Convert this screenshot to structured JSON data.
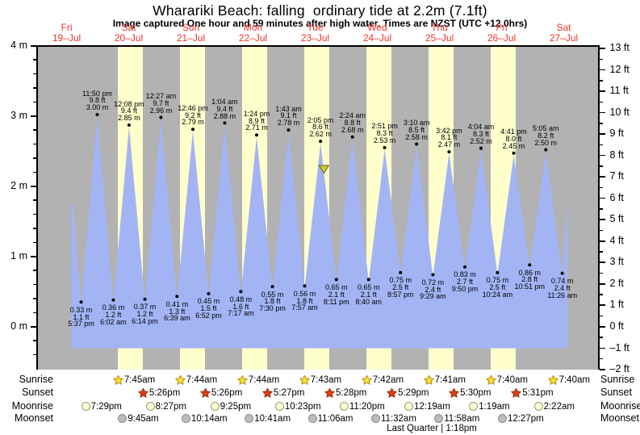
{
  "page": {
    "title": "Wharariki Beach: falling  ordinary tide at 2.2m (7.1ft)",
    "subtitle": "Image captured One hour and 59 minutes after high water. Times are NZST (UTC +12.0hrs)"
  },
  "chart_data": {
    "type": "area",
    "title": "Wharariki Beach: falling  ordinary tide at 2.2m (7.1ft)",
    "subtitle": "Image captured One hour and 59 minutes after high water. Times are NZST (UTC +12.0hrs)",
    "legend_position": "none",
    "grid": false,
    "x_days": [
      {
        "dow": "Fri",
        "date": "19–Jul"
      },
      {
        "dow": "Sat",
        "date": "20–Jul"
      },
      {
        "dow": "Sun",
        "date": "21–Jul"
      },
      {
        "dow": "Mon",
        "date": "22–Jul"
      },
      {
        "dow": "Tue",
        "date": "23–Jul"
      },
      {
        "dow": "Wed",
        "date": "24–Jul"
      },
      {
        "dow": "Thu",
        "date": "25–Jul"
      },
      {
        "dow": "Fri",
        "date": "26–Jul"
      },
      {
        "dow": "Sat",
        "date": "27–Jul"
      }
    ],
    "y_left": {
      "unit": "m",
      "range": [
        0,
        4
      ],
      "ticks": [
        {
          "v": 4,
          "label": "4 m"
        },
        {
          "v": 3,
          "label": "3 m"
        },
        {
          "v": 2,
          "label": "2 m"
        },
        {
          "v": 1,
          "label": "1 m"
        },
        {
          "v": 0,
          "label": "0 m"
        }
      ]
    },
    "y_right": {
      "unit": "ft",
      "range": [
        -2,
        13
      ],
      "ticks": [
        {
          "v": 13,
          "label": "13 ft"
        },
        {
          "v": 12,
          "label": "12 ft"
        },
        {
          "v": 11,
          "label": "11 ft"
        },
        {
          "v": 10,
          "label": "10 ft"
        },
        {
          "v": 9,
          "label": "9 ft"
        },
        {
          "v": 8,
          "label": "8 ft"
        },
        {
          "v": 7,
          "label": "7 ft"
        },
        {
          "v": 6,
          "label": "6 ft"
        },
        {
          "v": 5,
          "label": "5 ft"
        },
        {
          "v": 4,
          "label": "4 ft"
        },
        {
          "v": 3,
          "label": "3 ft"
        },
        {
          "v": 2,
          "label": "2 ft"
        },
        {
          "v": 1,
          "label": "1 ft"
        },
        {
          "v": 0,
          "label": "0 ft"
        },
        {
          "v": -1,
          "label": "–1 ft"
        },
        {
          "v": -2,
          "label": "–2 ft"
        }
      ]
    },
    "tides": [
      {
        "type": "L",
        "day": 0,
        "time": "5:37 pm",
        "m": "0.33 m",
        "ft": "1.1 ft"
      },
      {
        "type": "H",
        "day": 0,
        "time": "11:50 pm",
        "m": "3.00 m",
        "ft": "9.8 ft"
      },
      {
        "type": "L",
        "day": 1,
        "time": "6:02 am",
        "m": "0.36 m",
        "ft": "1.2 ft"
      },
      {
        "type": "H",
        "day": 1,
        "time": "12:08 pm",
        "m": "2.85 m",
        "ft": "9.4 ft"
      },
      {
        "type": "L",
        "day": 1,
        "time": "6:14 pm",
        "m": "0.37 m",
        "ft": "1.2 ft"
      },
      {
        "type": "H",
        "day": 2,
        "time": "12:27 am",
        "m": "2.96 m",
        "ft": "9.7 ft"
      },
      {
        "type": "L",
        "day": 2,
        "time": "6:39 am",
        "m": "0.41 m",
        "ft": "1.3 ft"
      },
      {
        "type": "H",
        "day": 2,
        "time": "12:46 pm",
        "m": "2.79 m",
        "ft": "9.2 ft"
      },
      {
        "type": "L",
        "day": 2,
        "time": "6:52 pm",
        "m": "0.45 m",
        "ft": "1.5 ft"
      },
      {
        "type": "H",
        "day": 3,
        "time": "1:04 am",
        "m": "2.88 m",
        "ft": "9.4 ft"
      },
      {
        "type": "L",
        "day": 3,
        "time": "7:17 am",
        "m": "0.48 m",
        "ft": "1.6 ft"
      },
      {
        "type": "H",
        "day": 3,
        "time": "1:24 pm",
        "m": "2.71 m",
        "ft": "8.9 ft"
      },
      {
        "type": "L",
        "day": 3,
        "time": "7:30 pm",
        "m": "0.55 m",
        "ft": "1.8 ft"
      },
      {
        "type": "H",
        "day": 4,
        "time": "1:43 am",
        "m": "2.78 m",
        "ft": "9.1 ft"
      },
      {
        "type": "L",
        "day": 4,
        "time": "7:57 am",
        "m": "0.56 m",
        "ft": "1.8 ft"
      },
      {
        "type": "H",
        "day": 4,
        "time": "2:05 pm",
        "m": "2.62 m",
        "ft": "8.6 ft"
      },
      {
        "type": "L",
        "day": 4,
        "time": "8:11 pm",
        "m": "0.65 m",
        "ft": "2.1 ft"
      },
      {
        "type": "H",
        "day": 5,
        "time": "2:24 am",
        "m": "2.68 m",
        "ft": "8.8 ft"
      },
      {
        "type": "L",
        "day": 5,
        "time": "8:40 am",
        "m": "0.65 m",
        "ft": "2.1 ft"
      },
      {
        "type": "H",
        "day": 5,
        "time": "2:51 pm",
        "m": "2.53 m",
        "ft": "8.3 ft"
      },
      {
        "type": "L",
        "day": 5,
        "time": "8:57 pm",
        "m": "0.75 m",
        "ft": "2.5 ft"
      },
      {
        "type": "H",
        "day": 6,
        "time": "3:10 am",
        "m": "2.58 m",
        "ft": "8.5 ft"
      },
      {
        "type": "L",
        "day": 6,
        "time": "9:29 am",
        "m": "0.72 m",
        "ft": "2.4 ft"
      },
      {
        "type": "H",
        "day": 6,
        "time": "3:42 pm",
        "m": "2.47 m",
        "ft": "8.1 ft"
      },
      {
        "type": "L",
        "day": 6,
        "time": "9:50 pm",
        "m": "0.83 m",
        "ft": "2.7 ft"
      },
      {
        "type": "H",
        "day": 7,
        "time": "4:04 am",
        "m": "2.52 m",
        "ft": "8.3 ft"
      },
      {
        "type": "L",
        "day": 7,
        "time": "10:24 am",
        "m": "0.75 m",
        "ft": "2.5 ft"
      },
      {
        "type": "H",
        "day": 7,
        "time": "4:41 pm",
        "m": "2.45 m",
        "ft": "8.0 ft"
      },
      {
        "type": "L",
        "day": 7,
        "time": "10:51 pm",
        "m": "0.86 m",
        "ft": "2.8 ft"
      },
      {
        "type": "H",
        "day": 8,
        "time": "5:05 am",
        "m": "2.50 m",
        "ft": "8.2 ft"
      },
      {
        "type": "L",
        "day": 8,
        "time": "11:26 am",
        "m": "0.74 m",
        "ft": "2.4 ft"
      }
    ],
    "capture_marker": {
      "level_m": 2.2,
      "between": [
        "2:05 pm",
        "8:11 pm"
      ]
    },
    "curve_start": {
      "day": 0,
      "hour": 13.7,
      "level_m": 1.74
    },
    "curve_end": {
      "day": 8,
      "hour": 13.45,
      "level_m": 1.85
    },
    "colors": {
      "night_band": "#b2b2b2",
      "daylight_band": "#ffffcc",
      "tide_fill": "#a3b4f5",
      "day_label": "#f2332b",
      "marker_fill": "#cfcb3d",
      "marker_stroke": "#77731f",
      "sunrise_star": "#f6df39",
      "sunrise_stroke": "#b8860b",
      "sunset_star": "#e23c17",
      "sunset_stroke": "#8f2c0c",
      "moonrise_fill": "#ffffd6",
      "moonrise_stroke": "#9a9a72",
      "moonset_fill": "#bcbcbc",
      "moonset_stroke": "#8a8a8a"
    }
  },
  "astro": {
    "rows": [
      {
        "key": "sunrise",
        "label": "Sunrise",
        "icon": "sunrise-star-icon",
        "entries": [
          {
            "day": 1,
            "time": "7:45am"
          },
          {
            "day": 2,
            "time": "7:44am"
          },
          {
            "day": 3,
            "time": "7:44am"
          },
          {
            "day": 4,
            "time": "7:43am"
          },
          {
            "day": 5,
            "time": "7:42am"
          },
          {
            "day": 6,
            "time": "7:41am"
          },
          {
            "day": 7,
            "time": "7:40am"
          },
          {
            "day": 8,
            "time": "7:40am"
          }
        ]
      },
      {
        "key": "sunset",
        "label": "Sunset",
        "icon": "sunset-star-icon",
        "entries": [
          {
            "day": 1,
            "time": "5:26pm"
          },
          {
            "day": 2,
            "time": "5:26pm"
          },
          {
            "day": 3,
            "time": "5:27pm"
          },
          {
            "day": 4,
            "time": "5:28pm"
          },
          {
            "day": 5,
            "time": "5:29pm"
          },
          {
            "day": 6,
            "time": "5:30pm"
          },
          {
            "day": 7,
            "time": "5:31pm"
          }
        ]
      },
      {
        "key": "moonrise",
        "label": "Moonrise",
        "icon": "moonrise-icon",
        "entries": [
          {
            "day": 0,
            "time": "7:29pm"
          },
          {
            "day": 1,
            "time": "8:27pm"
          },
          {
            "day": 2,
            "time": "9:25pm"
          },
          {
            "day": 3,
            "time": "10:23pm"
          },
          {
            "day": 4,
            "time": "11:20pm"
          },
          {
            "day": 6,
            "time": "12:19am"
          },
          {
            "day": 7,
            "time": "1:19am"
          },
          {
            "day": 8,
            "time": "2:22am"
          }
        ]
      },
      {
        "key": "moonset",
        "label": "Moonset",
        "icon": "moonset-icon",
        "entries": [
          {
            "day": 1,
            "time": "9:45am"
          },
          {
            "day": 2,
            "time": "10:14am"
          },
          {
            "day": 3,
            "time": "10:41am"
          },
          {
            "day": 4,
            "time": "11:06am"
          },
          {
            "day": 5,
            "time": "11:32am"
          },
          {
            "day": 6,
            "time": "11:58am"
          },
          {
            "day": 7,
            "time": "12:27pm"
          }
        ]
      }
    ],
    "moon_phase": "Last Quarter | 1:18pm"
  }
}
